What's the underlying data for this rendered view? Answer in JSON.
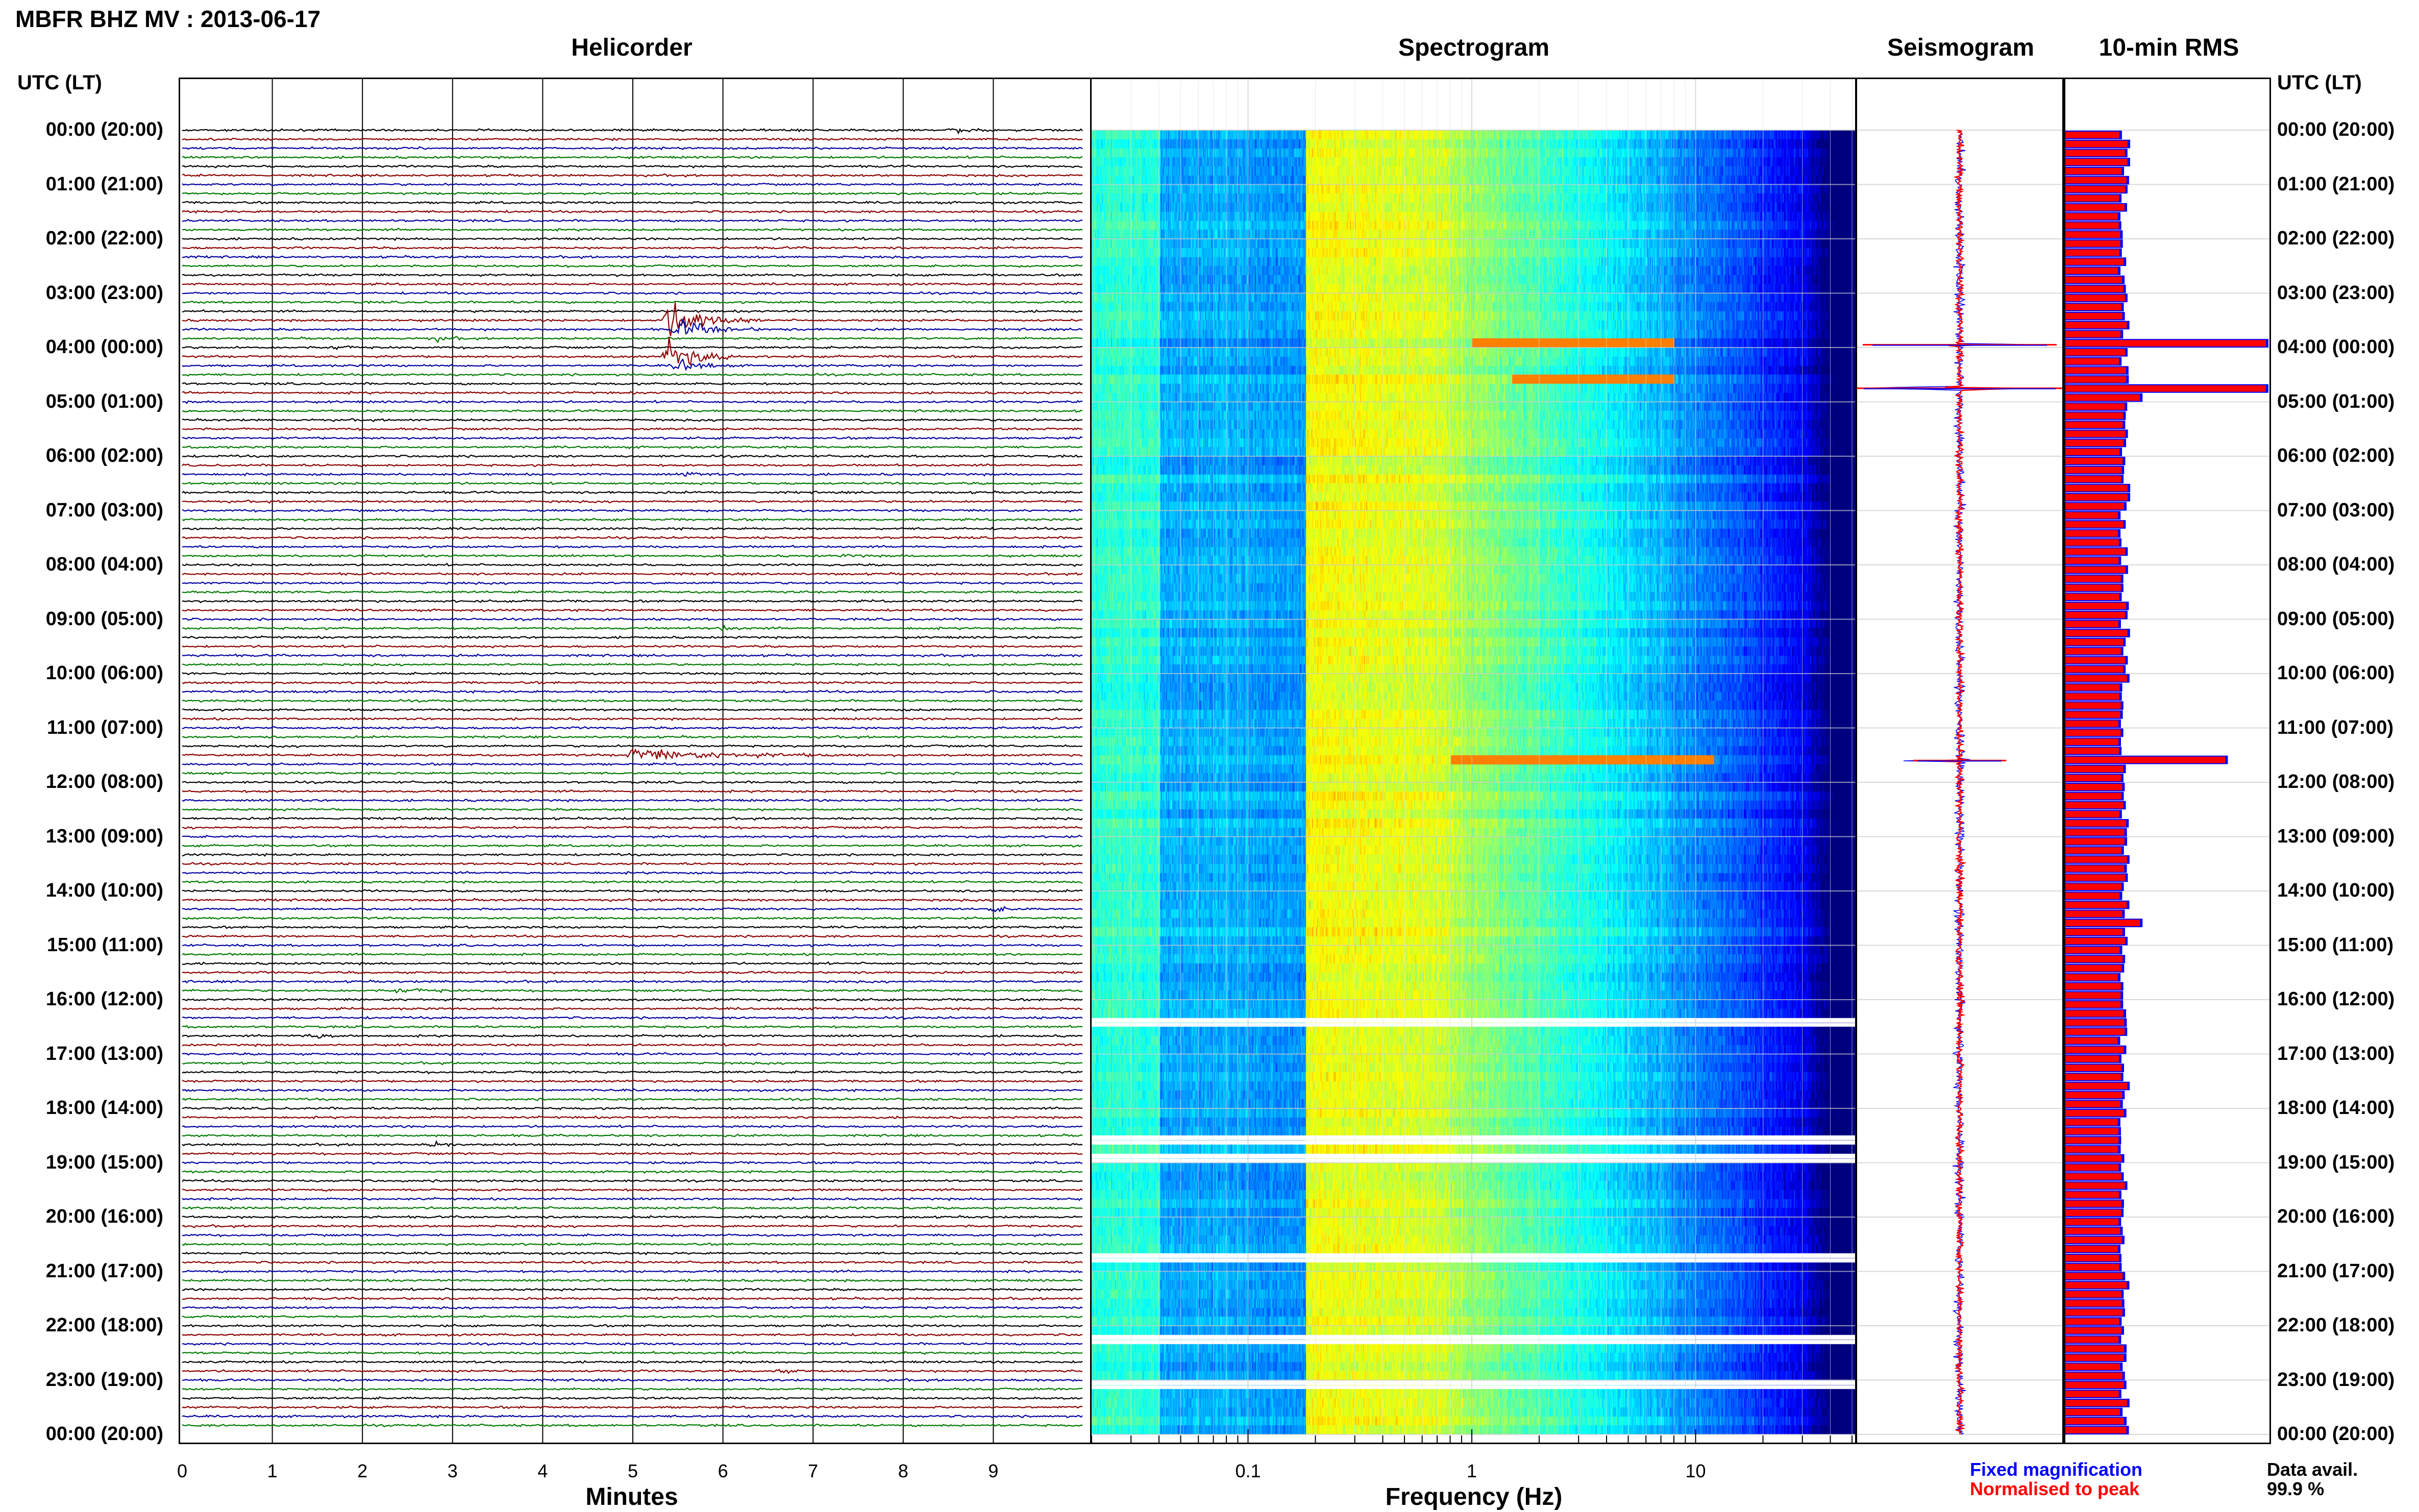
{
  "title": "MBFR BHZ MV : 2013-06-17",
  "panels": {
    "helicorder": "Helicorder",
    "spectrogram": "Spectrogram",
    "seismogram": "Seismogram",
    "rms": "10-min RMS"
  },
  "time_axis_label": "UTC (LT)",
  "hour_labels": [
    "00:00 (20:00)",
    "01:00 (21:00)",
    "02:00 (22:00)",
    "03:00 (23:00)",
    "04:00 (00:00)",
    "05:00 (01:00)",
    "06:00 (02:00)",
    "07:00 (03:00)",
    "08:00 (04:00)",
    "09:00 (05:00)",
    "10:00 (06:00)",
    "11:00 (07:00)",
    "12:00 (08:00)",
    "13:00 (09:00)",
    "14:00 (10:00)",
    "15:00 (11:00)",
    "16:00 (12:00)",
    "17:00 (13:00)",
    "18:00 (14:00)",
    "19:00 (15:00)",
    "20:00 (16:00)",
    "21:00 (17:00)",
    "22:00 (18:00)",
    "23:00 (19:00)",
    "00:00 (20:00)"
  ],
  "helicorder_xlabel": "Minutes",
  "helicorder_ticks": [
    "0",
    "1",
    "2",
    "3",
    "4",
    "5",
    "6",
    "7",
    "8",
    "9"
  ],
  "spectrogram_xlabel": "Frequency (Hz)",
  "spectrogram_ticks": [
    "0.1",
    "1",
    "10"
  ],
  "legend": {
    "fixed": "Fixed magnification",
    "normalised": "Normalised to peak"
  },
  "data_avail": {
    "label": "Data avail.",
    "value": "99.9 %"
  },
  "colors": {
    "trace_cycle": [
      "#000000",
      "#8b0000",
      "#0000a0",
      "#007a00"
    ],
    "fixed": "#0000ff",
    "normalised": "#ff0000"
  },
  "chart_data": [
    {
      "type": "line",
      "name": "helicorder",
      "xlabel": "Minutes",
      "xlim": [
        0,
        10
      ],
      "rows": 144,
      "row_minutes": 10,
      "events": [
        {
          "row": 0,
          "minute": 8.6,
          "amp": 0.35,
          "dur": 0.4
        },
        {
          "row": 21,
          "minute": 5.4,
          "amp": 3.2,
          "dur": 1.0
        },
        {
          "row": 22,
          "minute": 5.5,
          "amp": 1.5,
          "dur": 1.0
        },
        {
          "row": 25,
          "minute": 5.4,
          "amp": 2.8,
          "dur": 0.8
        },
        {
          "row": 26,
          "minute": 5.5,
          "amp": 1.2,
          "dur": 0.6
        },
        {
          "row": 23,
          "minute": 2.8,
          "amp": 0.4,
          "dur": 0.4
        },
        {
          "row": 24,
          "minute": 1.7,
          "amp": 0.4,
          "dur": 0.3
        },
        {
          "row": 69,
          "minute": 5.0,
          "amp": 0.9,
          "dur": 2.6
        },
        {
          "row": 55,
          "minute": 6.0,
          "amp": 0.4,
          "dur": 0.3
        },
        {
          "row": 100,
          "minute": 1.4,
          "amp": 0.5,
          "dur": 0.7
        },
        {
          "row": 95,
          "minute": 2.4,
          "amp": 0.4,
          "dur": 0.7
        },
        {
          "row": 112,
          "minute": 2.8,
          "amp": 0.4,
          "dur": 0.3
        },
        {
          "row": 86,
          "minute": 9.0,
          "amp": 0.4,
          "dur": 0.4
        },
        {
          "row": 47,
          "minute": 7.4,
          "amp": 0.3,
          "dur": 0.3
        },
        {
          "row": 38,
          "minute": 5.6,
          "amp": 0.3,
          "dur": 0.4
        },
        {
          "row": 137,
          "minute": 6.6,
          "amp": 0.3,
          "dur": 0.4
        }
      ]
    },
    {
      "type": "heatmap",
      "name": "spectrogram",
      "xlabel": "Frequency (Hz)",
      "xscale": "log",
      "xlim": [
        0.02,
        50
      ],
      "rows": 144,
      "gaps_row": [
        98,
        111,
        113,
        124,
        133,
        138
      ],
      "lines": [
        {
          "row": 23,
          "fmin": 1.0,
          "fmax": 8.0
        },
        {
          "row": 27,
          "fmin": 1.5,
          "fmax": 8.0
        },
        {
          "row": 69,
          "fmin": 0.8,
          "fmax": 12.0
        }
      ]
    },
    {
      "type": "line",
      "name": "seismogram",
      "events": [
        {
          "hour": 3.95,
          "amp": 1.0
        },
        {
          "hour": 4.75,
          "amp": 1.1
        },
        {
          "hour": 11.6,
          "amp": 0.48
        }
      ]
    },
    {
      "type": "bar",
      "name": "10-min RMS",
      "orientation": "horizontal",
      "series": [
        {
          "name": "Fixed magnification",
          "color": "#0000ff"
        },
        {
          "name": "Normalised to peak",
          "color": "#ff0000"
        }
      ],
      "spikes": [
        {
          "row": 23,
          "value": 1.0
        },
        {
          "row": 28,
          "value": 1.0
        },
        {
          "row": 69,
          "value": 0.8
        },
        {
          "row": 87,
          "value": 0.38
        },
        {
          "row": 29,
          "value": 0.38
        }
      ]
    }
  ]
}
